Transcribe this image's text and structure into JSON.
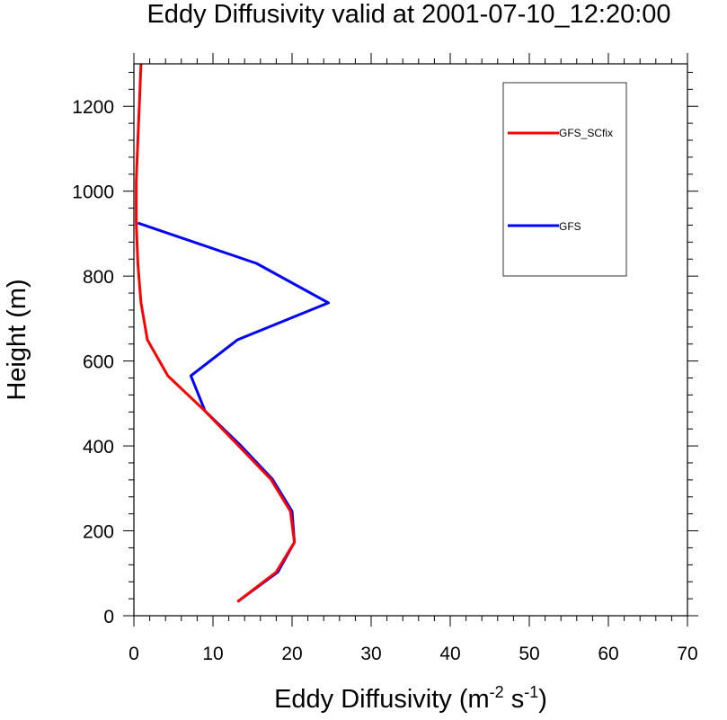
{
  "chart_data": {
    "type": "line",
    "title": "Eddy Diffusivity valid at 2001-07-10_12:20:00",
    "xlabel": "Eddy Diffusivity (m",
    "xlabel_sup1": "-2",
    "xlabel_mid": " s",
    "xlabel_sup2": "-1",
    "xlabel_end": ")",
    "ylabel": "Height (m)",
    "xlim": [
      0,
      70
    ],
    "ylim": [
      0,
      1300
    ],
    "xticks": [
      0,
      10,
      20,
      30,
      40,
      50,
      60,
      70
    ],
    "yticks": [
      0,
      200,
      400,
      600,
      800,
      1000,
      1200
    ],
    "legend_position": "top-right",
    "series": [
      {
        "name": "GFS_SCfix",
        "color": "#ff0000",
        "x": [
          13.1,
          18.0,
          20.3,
          19.8,
          17.3,
          13.1,
          9.0,
          4.3,
          1.7,
          0.9,
          0.5,
          0.3,
          0.3,
          0.5,
          0.7,
          0.9
        ],
        "y": [
          33,
          103,
          173,
          246,
          322,
          403,
          482,
          565,
          650,
          737,
          830,
          925,
          1022,
          1120,
          1210,
          1300
        ]
      },
      {
        "name": "GFS",
        "color": "#0000ff",
        "x": [
          13.1,
          18.2,
          20.3,
          20.0,
          17.5,
          13.4,
          9.0,
          7.2,
          13.1,
          24.6,
          15.5,
          0.5
        ],
        "y": [
          33,
          103,
          173,
          246,
          322,
          403,
          482,
          565,
          650,
          737,
          830,
          925
        ]
      }
    ]
  }
}
